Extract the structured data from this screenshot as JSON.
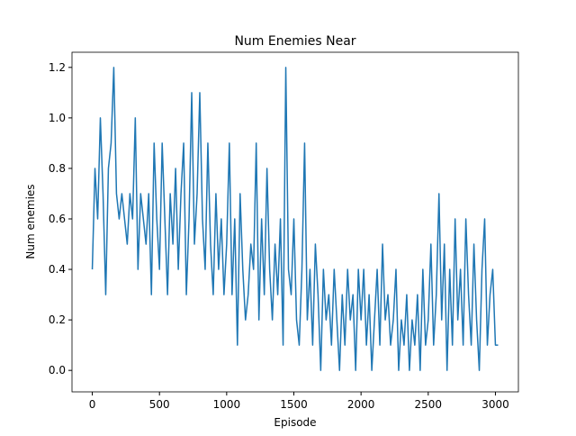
{
  "chart_data": {
    "type": "line",
    "title": "Num Enemies Near",
    "x_label": "Episode",
    "y_label": "Num enemies",
    "x": [
      0,
      20,
      40,
      60,
      80,
      100,
      120,
      140,
      160,
      180,
      200,
      220,
      240,
      260,
      280,
      300,
      320,
      340,
      360,
      380,
      400,
      420,
      440,
      460,
      480,
      500,
      520,
      540,
      560,
      580,
      600,
      620,
      640,
      660,
      680,
      700,
      720,
      740,
      760,
      780,
      800,
      820,
      840,
      860,
      880,
      900,
      920,
      940,
      960,
      980,
      1000,
      1020,
      1040,
      1060,
      1080,
      1100,
      1120,
      1140,
      1160,
      1180,
      1200,
      1220,
      1240,
      1260,
      1280,
      1300,
      1320,
      1340,
      1360,
      1380,
      1400,
      1420,
      1440,
      1460,
      1480,
      1500,
      1520,
      1540,
      1560,
      1580,
      1600,
      1620,
      1640,
      1660,
      1680,
      1700,
      1720,
      1740,
      1760,
      1780,
      1800,
      1820,
      1840,
      1860,
      1880,
      1900,
      1920,
      1940,
      1960,
      1980,
      2000,
      2020,
      2040,
      2060,
      2080,
      2100,
      2120,
      2140,
      2160,
      2180,
      2200,
      2220,
      2240,
      2260,
      2280,
      2300,
      2320,
      2340,
      2360,
      2380,
      2400,
      2420,
      2440,
      2460,
      2480,
      2500,
      2520,
      2540,
      2560,
      2580,
      2600,
      2620,
      2640,
      2660,
      2680,
      2700,
      2720,
      2740,
      2760,
      2780,
      2800,
      2820,
      2840,
      2860,
      2880,
      2900,
      2920,
      2940,
      2960,
      2980,
      3000,
      3020
    ],
    "series": [
      {
        "name": "Num enemies",
        "color": "#1f77b4",
        "values": [
          0.4,
          0.8,
          0.6,
          1.0,
          0.7,
          0.3,
          0.8,
          0.9,
          1.2,
          0.7,
          0.6,
          0.7,
          0.6,
          0.5,
          0.7,
          0.6,
          1.0,
          0.4,
          0.7,
          0.6,
          0.5,
          0.7,
          0.3,
          0.9,
          0.6,
          0.4,
          0.9,
          0.6,
          0.3,
          0.7,
          0.5,
          0.8,
          0.4,
          0.7,
          0.9,
          0.3,
          0.6,
          1.1,
          0.5,
          0.7,
          1.1,
          0.6,
          0.4,
          0.9,
          0.5,
          0.3,
          0.7,
          0.4,
          0.6,
          0.3,
          0.5,
          0.9,
          0.3,
          0.6,
          0.1,
          0.7,
          0.4,
          0.2,
          0.3,
          0.5,
          0.4,
          0.9,
          0.2,
          0.6,
          0.3,
          0.8,
          0.4,
          0.2,
          0.5,
          0.3,
          0.6,
          0.1,
          1.2,
          0.4,
          0.3,
          0.6,
          0.2,
          0.1,
          0.4,
          0.9,
          0.2,
          0.4,
          0.1,
          0.5,
          0.3,
          0.0,
          0.4,
          0.2,
          0.3,
          0.1,
          0.4,
          0.2,
          0.0,
          0.3,
          0.1,
          0.4,
          0.2,
          0.3,
          0.0,
          0.4,
          0.2,
          0.4,
          0.1,
          0.3,
          0.0,
          0.2,
          0.4,
          0.1,
          0.5,
          0.2,
          0.3,
          0.1,
          0.2,
          0.4,
          0.0,
          0.2,
          0.1,
          0.3,
          0.0,
          0.2,
          0.1,
          0.3,
          0.0,
          0.4,
          0.1,
          0.2,
          0.5,
          0.1,
          0.3,
          0.7,
          0.2,
          0.5,
          0.0,
          0.4,
          0.1,
          0.6,
          0.2,
          0.4,
          0.1,
          0.6,
          0.3,
          0.1,
          0.5,
          0.2,
          0.0,
          0.4,
          0.6,
          0.1,
          0.3,
          0.4,
          0.1,
          0.1
        ]
      }
    ],
    "xlim": [
      -151,
      3171
    ],
    "ylim": [
      -0.085,
      1.26
    ],
    "xticks": [
      0,
      500,
      1000,
      1500,
      2000,
      2500,
      3000
    ],
    "yticks": [
      {
        "value": 0,
        "label": "0.0"
      },
      0.2,
      0.4,
      0.6,
      0.8,
      {
        "value": 1,
        "label": "1.0"
      },
      1.2
    ]
  }
}
